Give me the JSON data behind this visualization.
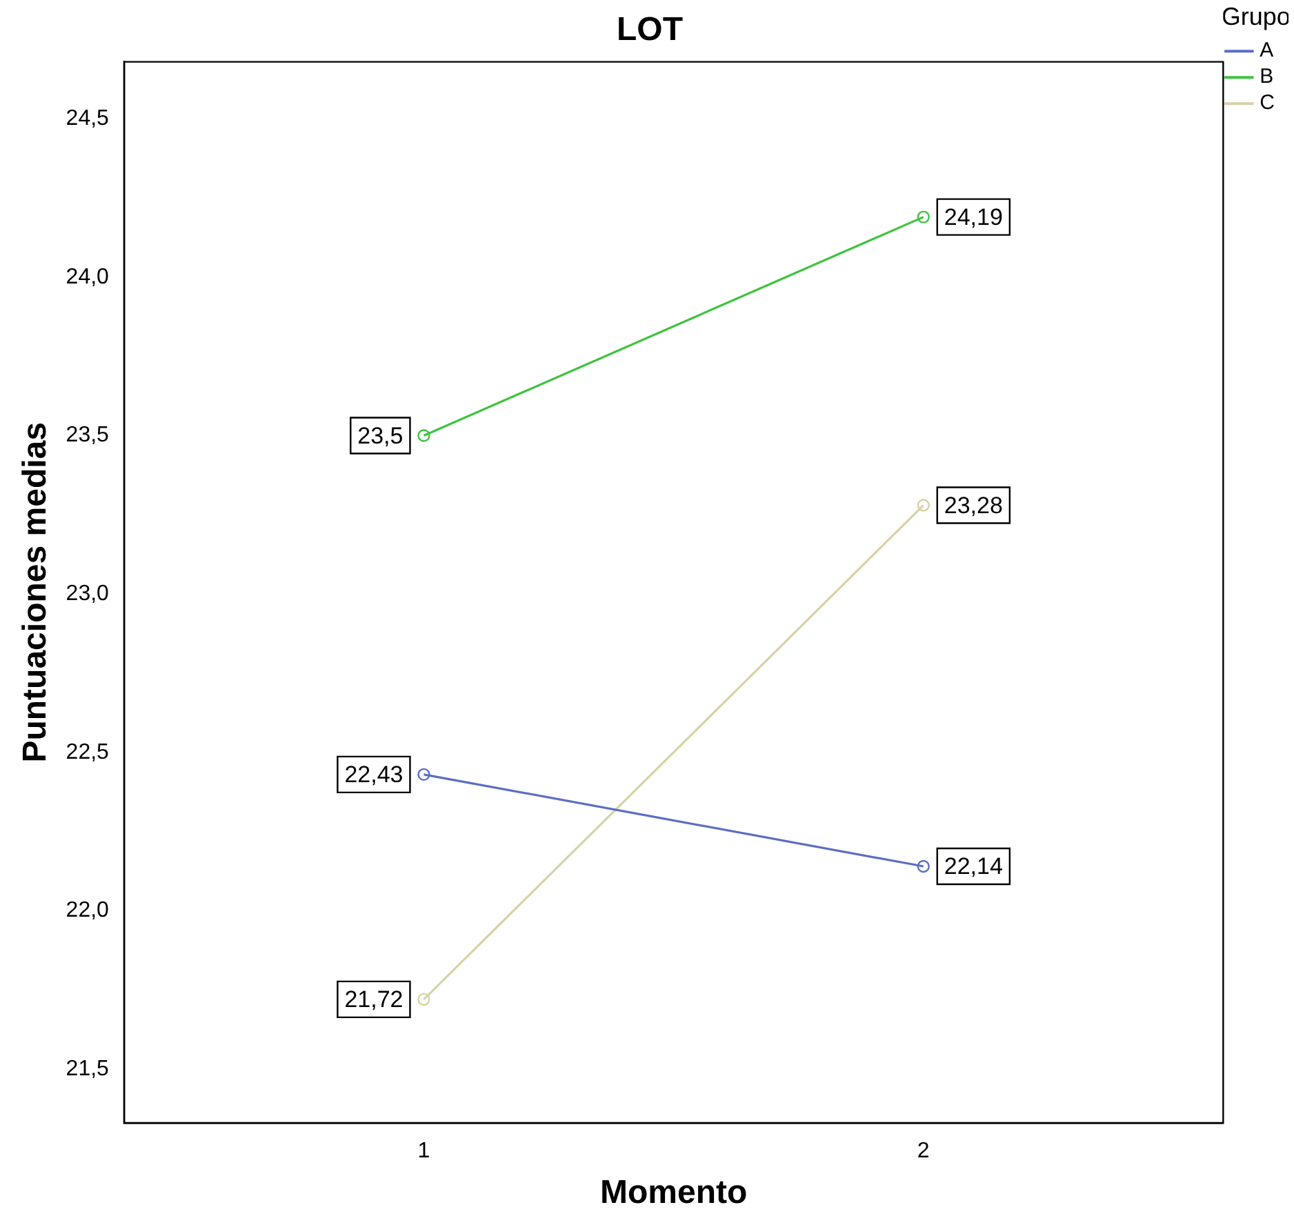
{
  "chart_data": {
    "type": "line",
    "title": "LOT",
    "xlabel": "Momento",
    "ylabel": "Puntuaciones medias",
    "legend_title": "Grupo",
    "x": [
      1,
      2
    ],
    "xlim": [
      0.4,
      2.6
    ],
    "xticks": [
      1,
      2
    ],
    "series": [
      {
        "name": "A",
        "color": "#5b6ec4",
        "values": [
          22.43,
          22.14
        ],
        "value_labels": [
          "22,43",
          "22,14"
        ]
      },
      {
        "name": "B",
        "color": "#3fc241",
        "values": [
          23.5,
          24.19
        ],
        "value_labels": [
          "23,5",
          "24,19"
        ]
      },
      {
        "name": "C",
        "color": "#d7d2a6",
        "values": [
          21.72,
          23.28
        ],
        "value_labels": [
          "21,72",
          "23,28"
        ]
      }
    ],
    "ylim": [
      21.33,
      24.68
    ],
    "yticks": [
      {
        "value": 21.5,
        "label": "21,5"
      },
      {
        "value": 22,
        "label": "22,0"
      },
      {
        "value": 22.5,
        "label": "22,5"
      },
      {
        "value": 23,
        "label": "23,0"
      },
      {
        "value": 23.5,
        "label": "23,5"
      },
      {
        "value": 24,
        "label": "24,0"
      },
      {
        "value": 24.5,
        "label": "24,5"
      }
    ],
    "grid": false,
    "legend": "top right",
    "marker": "circle",
    "line_style": "solid"
  }
}
